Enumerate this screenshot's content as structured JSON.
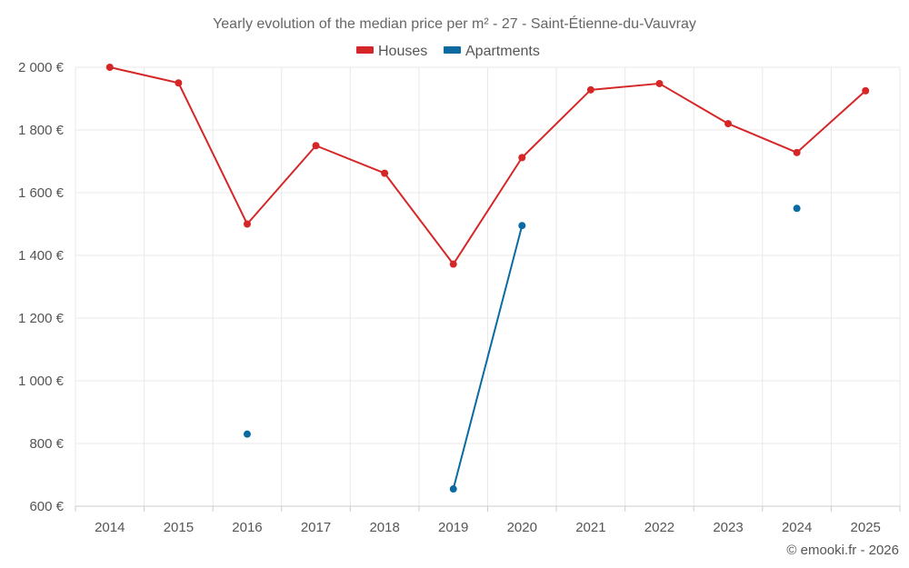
{
  "chart_data": {
    "type": "line",
    "title": "Yearly evolution of the median price per m² - 27 - Saint-Étienne-du-Vauvray",
    "categories": [
      "2014",
      "2015",
      "2016",
      "2017",
      "2018",
      "2019",
      "2020",
      "2021",
      "2022",
      "2023",
      "2024",
      "2025"
    ],
    "y_ticks": [
      600,
      800,
      1000,
      1200,
      1400,
      1600,
      1800,
      2000
    ],
    "y_tick_labels": [
      "600 €",
      "800 €",
      "1 000 €",
      "1 200 €",
      "1 400 €",
      "1 600 €",
      "1 800 €",
      "2 000 €"
    ],
    "ylim": [
      600,
      2000
    ],
    "grid": true,
    "legend_position": "top-center",
    "series": [
      {
        "name": "Houses",
        "color": "#d62728",
        "values": [
          2000,
          1950,
          1500,
          1750,
          1662,
          1372,
          1712,
          1928,
          1948,
          1820,
          1728,
          1925
        ]
      },
      {
        "name": "Apartments",
        "color": "#0b6aa2",
        "values": [
          null,
          null,
          830,
          null,
          null,
          655,
          1495,
          null,
          null,
          null,
          1550,
          null
        ]
      }
    ],
    "credit": "© emooki.fr - 2026"
  }
}
